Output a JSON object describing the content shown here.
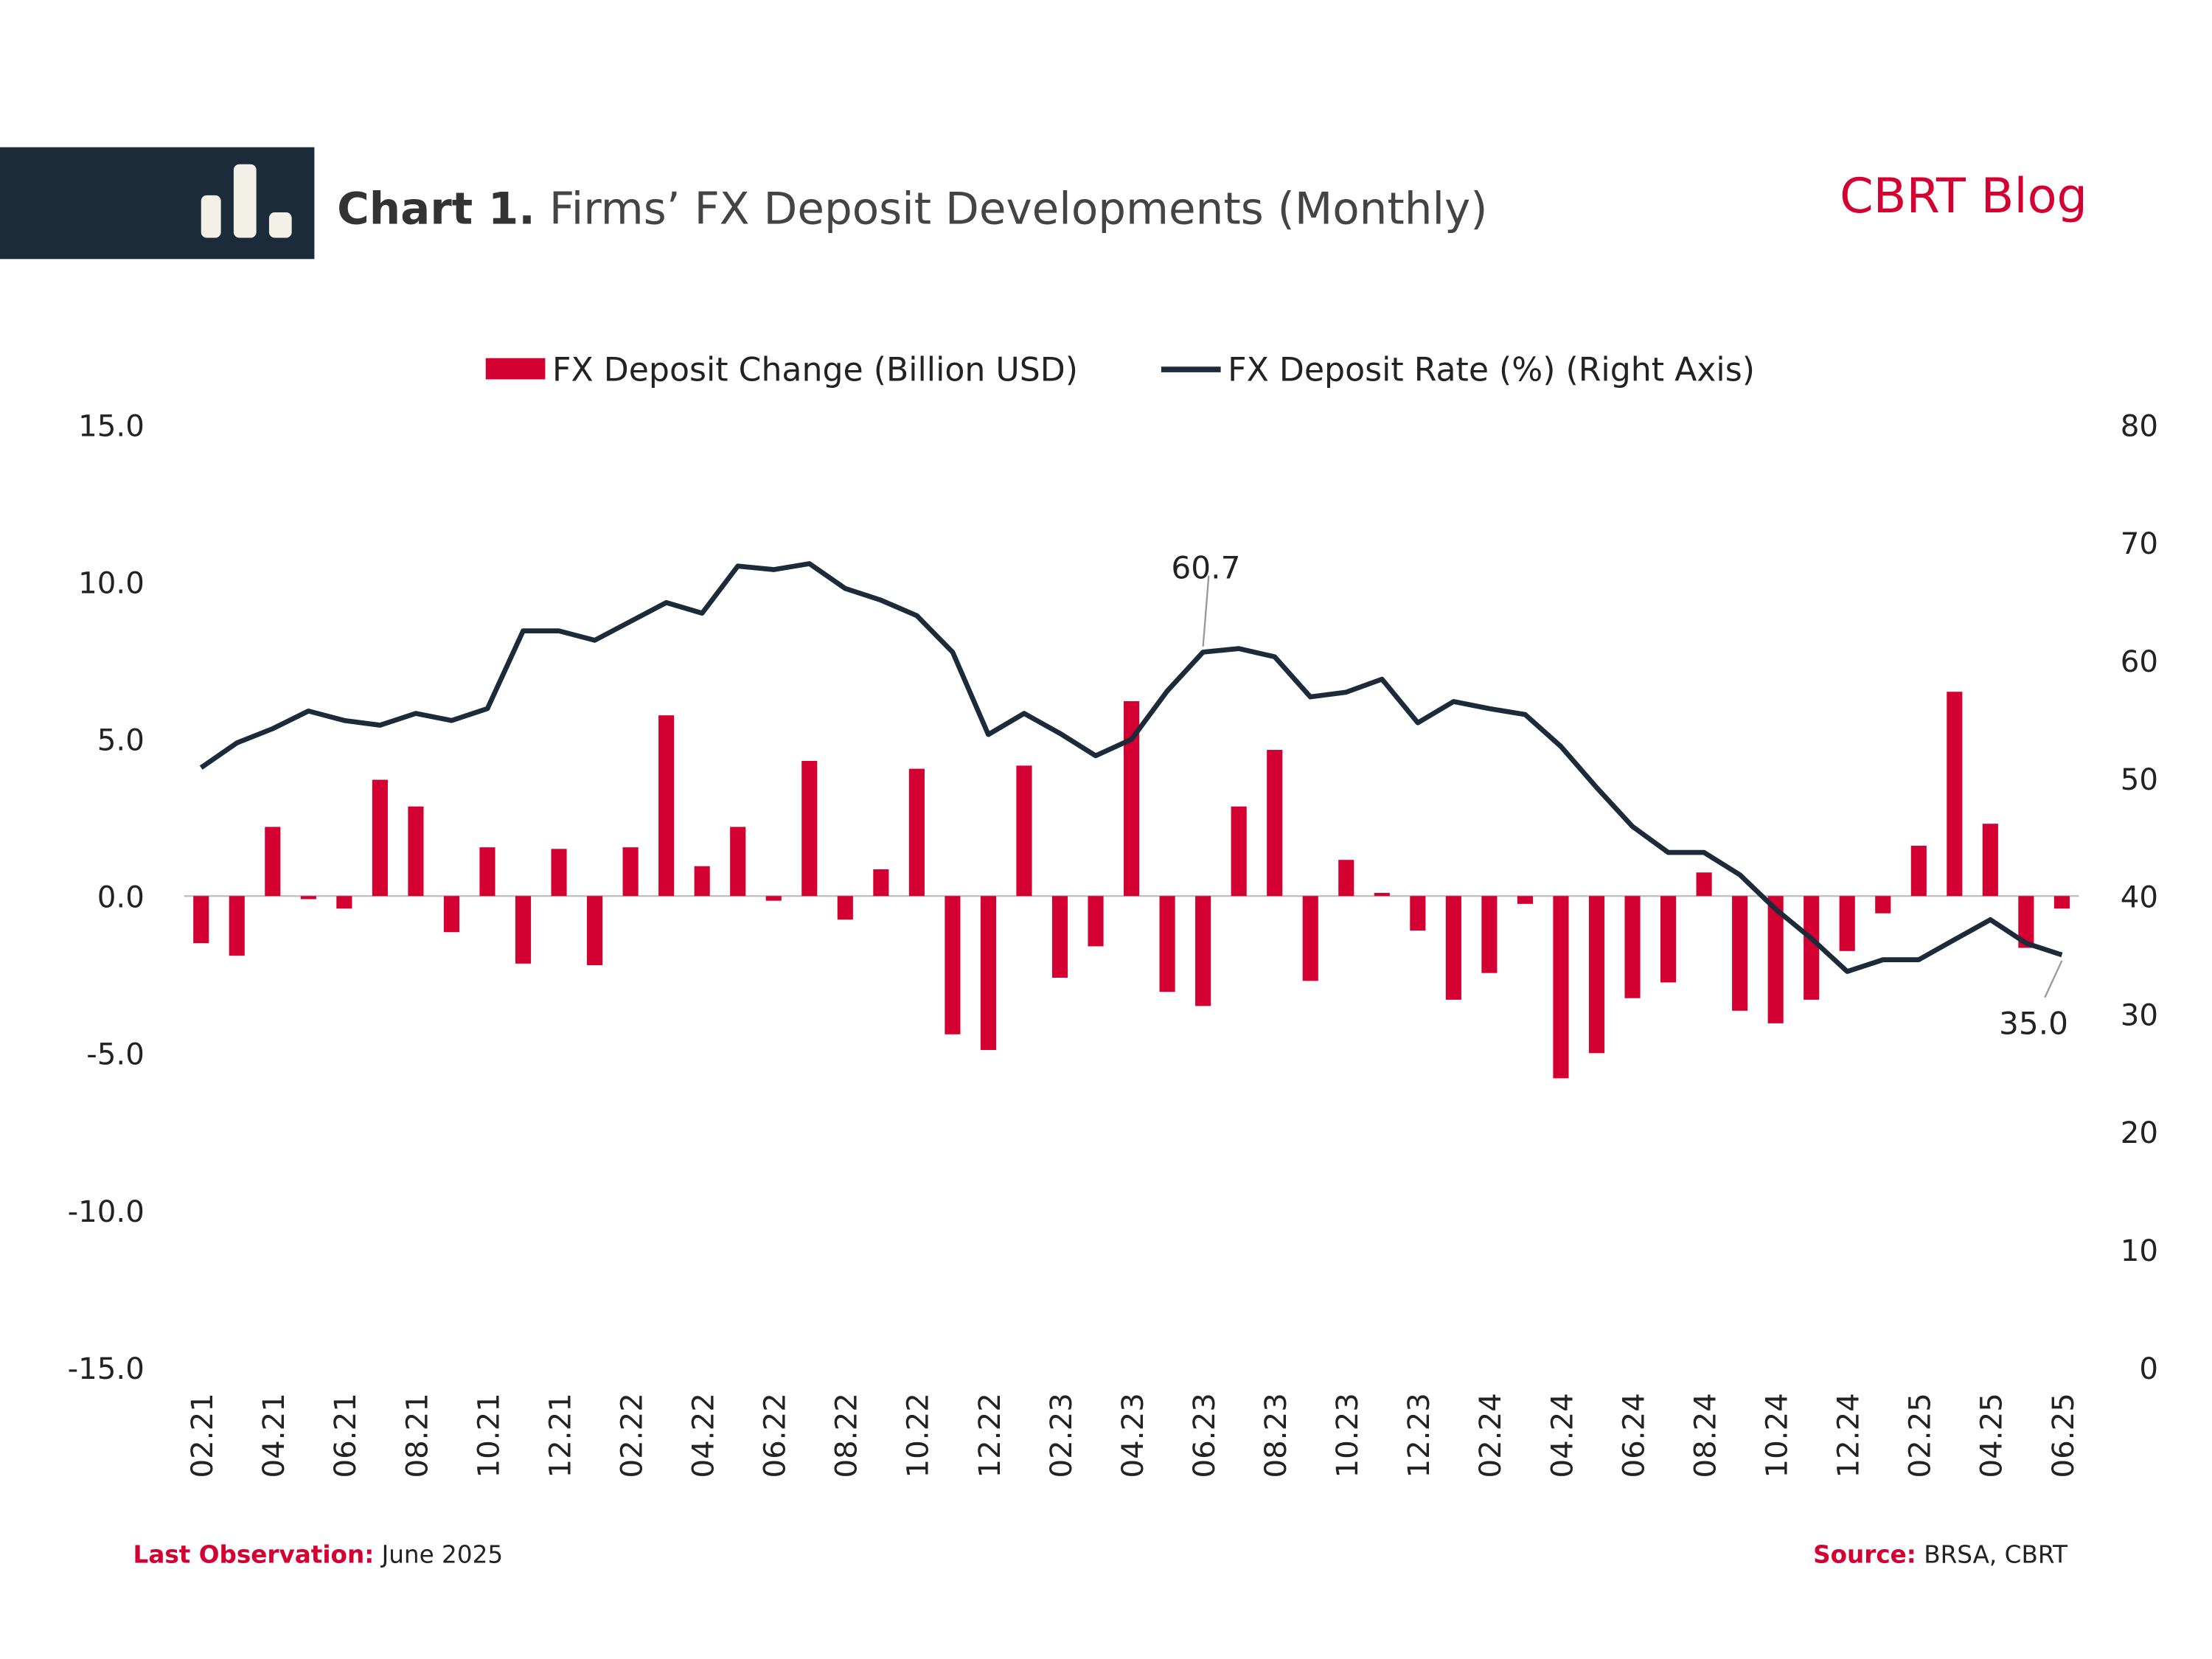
{
  "header": {
    "chart_number": "Chart 1.",
    "brand": "CBRT Blog"
  },
  "footer": {
    "last_observation_label": "Last Observation:",
    "last_observation": "June 2025",
    "source_label": "Source:",
    "source": "BRSA, CBRT"
  },
  "chart_data": {
    "type": "bar_line",
    "title": "Firms’ FX Deposit Developments (Monthly)",
    "categories": [
      "02.21",
      null,
      "04.21",
      null,
      "06.21",
      null,
      "08.21",
      null,
      "10.21",
      null,
      "12.21",
      null,
      "02.22",
      null,
      "04.22",
      null,
      "06.22",
      null,
      "08.22",
      null,
      "10.22",
      null,
      "12.22",
      null,
      "02.23",
      null,
      "04.23",
      null,
      "06.23",
      null,
      "08.23",
      null,
      "10.23",
      null,
      "12.23",
      null,
      "02.24",
      null,
      "04.24",
      null,
      "06.24",
      null,
      "08.24",
      null,
      "10.24",
      null,
      "12.24",
      null,
      "02.25",
      null,
      "04.25",
      null,
      "06.25"
    ],
    "series": [
      {
        "name": "FX Deposit Change (Billion USD)",
        "type": "bar",
        "color": "#d50032",
        "values": [
          -1.5,
          -1.9,
          2.2,
          -0.1,
          -0.4,
          3.7,
          2.85,
          -1.15,
          1.55,
          -2.15,
          1.5,
          -2.2,
          1.55,
          5.75,
          0.95,
          2.2,
          -0.15,
          4.3,
          -0.75,
          0.85,
          4.05,
          -4.4,
          -4.9,
          4.15,
          -2.6,
          -1.6,
          6.2,
          -3.05,
          -3.5,
          2.85,
          4.65,
          -2.7,
          1.15,
          0.1,
          -1.1,
          -3.3,
          -2.45,
          -0.25,
          -5.8,
          -5.0,
          -3.25,
          -2.75,
          0.75,
          -3.65,
          -4.05,
          -3.3,
          -1.75,
          -0.55,
          1.6,
          6.5,
          2.3,
          -1.65,
          -0.4
        ]
      },
      {
        "name": "FX Deposit Rate (%) (Right Axis)",
        "type": "line",
        "axis": "y2",
        "color": "#1c2b3a",
        "values": [
          50.9,
          53.0,
          54.2,
          55.7,
          54.9,
          54.5,
          55.5,
          54.9,
          55.9,
          62.5,
          62.5,
          61.7,
          63.3,
          64.9,
          64.0,
          68.0,
          67.7,
          68.2,
          66.1,
          65.1,
          63.8,
          60.7,
          53.7,
          55.5,
          53.8,
          51.9,
          53.3,
          57.4,
          60.7,
          61.0,
          60.3,
          56.9,
          57.3,
          58.4,
          54.7,
          56.5,
          55.9,
          55.4,
          52.7,
          49.2,
          45.9,
          43.7,
          43.7,
          41.8,
          38.9,
          36.4,
          33.6,
          34.6,
          34.6,
          36.3,
          38.0,
          36.0,
          35.0
        ],
        "value_labels": [
          null,
          null,
          null,
          null,
          null,
          null,
          null,
          null,
          null,
          null,
          null,
          null,
          null,
          null,
          null,
          null,
          null,
          null,
          null,
          null,
          null,
          null,
          null,
          null,
          null,
          null,
          null,
          null,
          "60.7",
          null,
          null,
          null,
          null,
          null,
          null,
          null,
          null,
          null,
          null,
          null,
          null,
          null,
          null,
          null,
          null,
          null,
          null,
          null,
          null,
          null,
          null,
          null,
          "35.0"
        ]
      }
    ],
    "ylim": [
      -15,
      15
    ],
    "yticks": [
      {
        "value": -15,
        "label": "-15.0"
      },
      {
        "value": -10,
        "label": "-10.0"
      },
      {
        "value": -5,
        "label": "-5.0"
      },
      {
        "value": 0,
        "label": "0.0"
      },
      {
        "value": 5,
        "label": "5.0"
      },
      {
        "value": 10,
        "label": "10.0"
      },
      {
        "value": 15,
        "label": "15.0"
      }
    ],
    "y2lim": [
      0,
      80
    ],
    "y2ticks": [
      0,
      10,
      20,
      30,
      40,
      50,
      60,
      70,
      80
    ],
    "legend": "top"
  }
}
